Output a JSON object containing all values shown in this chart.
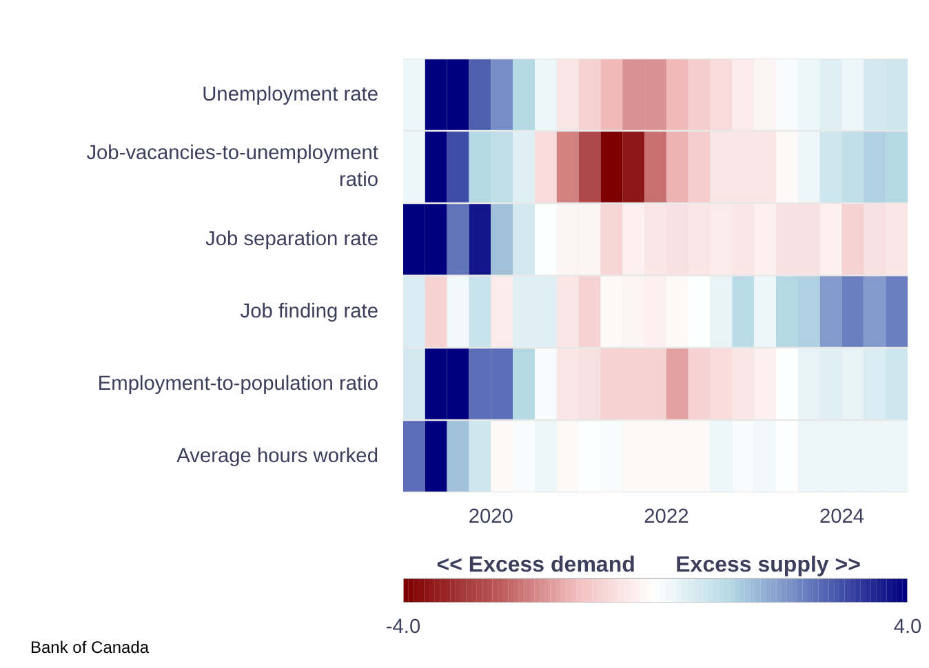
{
  "chart_data": {
    "type": "heatmap",
    "x": [
      2019.125,
      2019.375,
      2019.625,
      2019.875,
      2020.125,
      2020.375,
      2020.625,
      2020.875,
      2021.125,
      2021.375,
      2021.625,
      2021.875,
      2022.125,
      2022.375,
      2022.625,
      2022.875,
      2023.125,
      2023.375,
      2023.625,
      2023.875,
      2024.125,
      2024.375,
      2024.625
    ],
    "xlim": [
      2019,
      2024.75
    ],
    "xticks": [
      2020,
      2022,
      2024
    ],
    "y_categories": [
      "Unemployment rate",
      "Job-vacancies-to-unemployment ratio",
      "Job separation rate",
      "Job finding rate",
      "Employment-to-population ratio",
      "Average hours worked"
    ],
    "cells": [
      [
        0.3,
        4.0,
        4.0,
        2.8,
        2.2,
        1.2,
        0.3,
        -0.5,
        -0.9,
        -1.3,
        -1.8,
        -1.8,
        -1.3,
        -1.0,
        -0.7,
        -0.4,
        -0.2,
        0.1,
        0.3,
        0.5,
        0.3,
        0.7,
        0.8
      ],
      [
        0.3,
        4.0,
        3.0,
        1.2,
        1.0,
        0.5,
        -0.7,
        -2.0,
        -2.8,
        -4.0,
        -3.6,
        -2.2,
        -1.4,
        -1.0,
        -0.5,
        -0.5,
        -0.5,
        -0.1,
        0.3,
        0.8,
        1.0,
        1.3,
        1.2
      ],
      [
        4.0,
        4.0,
        2.5,
        3.7,
        1.5,
        0.7,
        0.0,
        -0.2,
        -0.2,
        -0.8,
        -0.3,
        -0.5,
        -0.6,
        -0.5,
        -0.4,
        -0.5,
        -0.3,
        -0.6,
        -0.6,
        -0.3,
        -0.9,
        -0.6,
        -0.5
      ],
      [
        0.6,
        -0.9,
        0.2,
        0.9,
        -0.4,
        0.5,
        0.5,
        -0.5,
        -0.9,
        -0.1,
        -0.2,
        -0.3,
        -0.1,
        0.0,
        0.4,
        1.1,
        0.3,
        1.2,
        1.3,
        2.0,
        2.4,
        2.0,
        2.4
      ],
      [
        0.7,
        4.0,
        4.0,
        2.6,
        2.6,
        1.2,
        0.1,
        -0.5,
        -0.6,
        -0.9,
        -0.9,
        -0.9,
        -1.6,
        -0.9,
        -0.7,
        -0.5,
        -0.3,
        0.0,
        0.4,
        0.5,
        0.4,
        0.6,
        0.8
      ],
      [
        2.6,
        4.0,
        1.5,
        0.8,
        -0.1,
        0.1,
        0.3,
        -0.1,
        0.0,
        0.1,
        -0.1,
        -0.1,
        -0.1,
        -0.1,
        0.3,
        0.1,
        0.2,
        0.0,
        0.3,
        0.3,
        0.3,
        0.3,
        0.3
      ]
    ],
    "clim": [
      -4,
      4
    ],
    "cticks": [
      {
        "value": -4,
        "label": "-4.0"
      },
      {
        "value": 4,
        "label": "4.0"
      }
    ],
    "annotations": [
      "<< Excess demand",
      "Excess supply >>",
      "Bank of Canada"
    ]
  }
}
